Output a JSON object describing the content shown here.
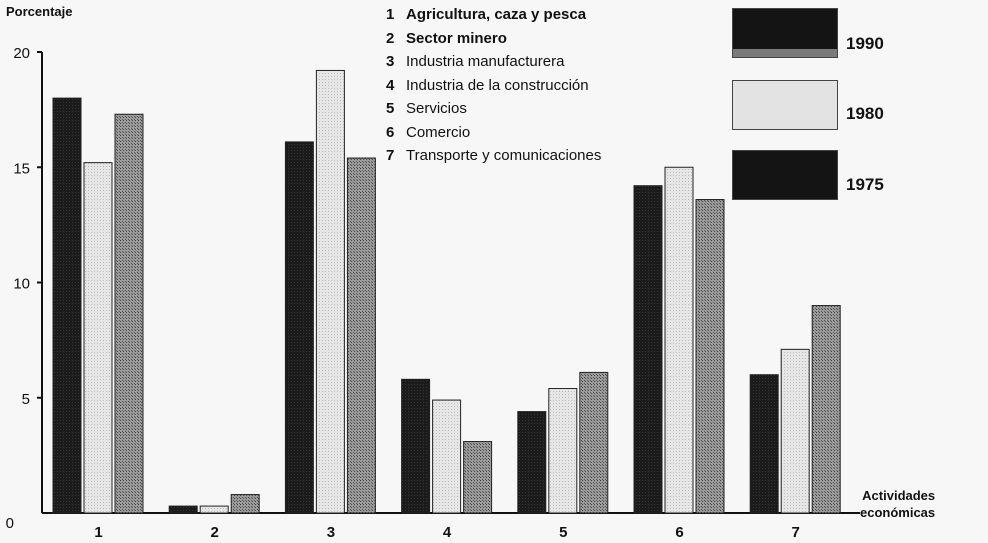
{
  "chart_data": {
    "type": "bar",
    "ylabel": "Porcentaje",
    "xlabel_lines": [
      "Actividades",
      "económicas"
    ],
    "categories": [
      "1",
      "2",
      "3",
      "4",
      "5",
      "6",
      "7"
    ],
    "ylim": [
      0,
      20
    ],
    "yticks": [
      "0",
      "5",
      "10",
      "15",
      "20"
    ],
    "grid": false,
    "legend_position": "top-right",
    "category_legend": [
      {
        "num": "1",
        "label": "Agricultura, caza y pesca",
        "bold": true
      },
      {
        "num": "2",
        "label": "Sector minero",
        "bold": true
      },
      {
        "num": "3",
        "label": "Industria manufacturera",
        "bold": false
      },
      {
        "num": "4",
        "label": "Industria de la construcción",
        "bold": false
      },
      {
        "num": "5",
        "label": "Servicios",
        "bold": false
      },
      {
        "num": "6",
        "label": "Comercio",
        "bold": false
      },
      {
        "num": "7",
        "label": "Transporte y comunicaciones",
        "bold": false
      }
    ],
    "series": [
      {
        "name": "1975",
        "color": "#1b1b1b",
        "values": [
          18.0,
          0.3,
          16.1,
          5.8,
          4.4,
          14.2,
          6.0
        ]
      },
      {
        "name": "1980",
        "color": "#e3e3e3",
        "values": [
          15.2,
          0.3,
          19.2,
          4.9,
          5.4,
          15.0,
          7.1
        ]
      },
      {
        "name": "1990",
        "color": "#8a8a8a",
        "values": [
          17.3,
          0.8,
          15.4,
          3.1,
          6.1,
          13.6,
          9.0
        ]
      }
    ],
    "legend_order": [
      "1990",
      "1980",
      "1975"
    ]
  }
}
